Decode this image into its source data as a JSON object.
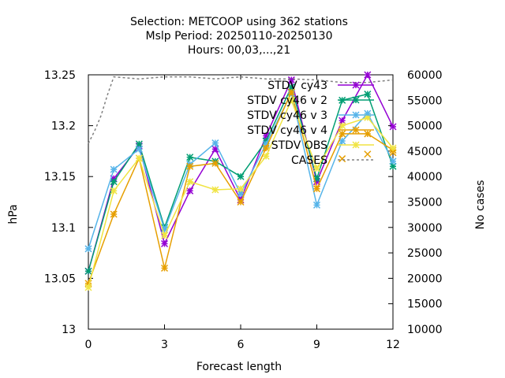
{
  "chart_data": {
    "type": "line",
    "title_lines": [
      "Selection: METCOOP using   362 stations",
      "Mslp   Period: 20250110-20250130",
      "Hours:  00,03,...,21"
    ],
    "xlabel": "Forecast length",
    "ylabel": "hPa",
    "y2label": "No cases",
    "xlim": [
      0,
      12
    ],
    "xticks": [
      0,
      3,
      6,
      9,
      12
    ],
    "ylim": [
      13,
      13.25
    ],
    "yticks": [
      13,
      13.05,
      13.1,
      13.15,
      13.2,
      13.25
    ],
    "ytick_labels": [
      "13",
      "13.05",
      "13.1",
      "13.15",
      "13.2",
      "13.25"
    ],
    "y2lim": [
      10000,
      60000
    ],
    "y2ticks": [
      10000,
      15000,
      20000,
      25000,
      30000,
      35000,
      40000,
      45000,
      50000,
      55000,
      60000
    ],
    "legend_position": "top-right",
    "grid": false,
    "x": [
      0,
      1,
      2,
      3,
      4,
      5,
      6,
      7,
      8,
      9,
      10,
      11,
      12
    ],
    "series": [
      {
        "name": "STDV cy43",
        "color": "#9400d3",
        "marker": "star",
        "axis": "y",
        "values": [
          13.057,
          13.148,
          13.18,
          13.084,
          13.136,
          13.177,
          13.127,
          13.19,
          13.245,
          13.145,
          13.205,
          13.25,
          13.199
        ]
      },
      {
        "name": "STDV cy46 v 2",
        "color": "#009e73",
        "marker": "star",
        "axis": "y",
        "values": [
          13.057,
          13.145,
          13.182,
          13.1,
          13.169,
          13.165,
          13.15,
          13.185,
          13.238,
          13.148,
          13.225,
          13.231,
          13.16
        ]
      },
      {
        "name": "STDV cy46 v 3",
        "color": "#56b4e9",
        "marker": "star",
        "axis": "y",
        "values": [
          13.079,
          13.157,
          13.177,
          13.098,
          13.162,
          13.183,
          13.133,
          13.182,
          13.232,
          13.122,
          13.185,
          13.212,
          13.165
        ]
      },
      {
        "name": "STDV cy46 v 4",
        "color": "#e69f00",
        "marker": "star",
        "axis": "y",
        "values": [
          13.045,
          13.113,
          13.168,
          13.06,
          13.16,
          13.163,
          13.125,
          13.178,
          13.233,
          13.138,
          13.192,
          13.192,
          13.176
        ]
      },
      {
        "name": "STDV OBS",
        "color": "#f0e442",
        "marker": "star",
        "axis": "y",
        "values": [
          13.041,
          13.136,
          13.168,
          13.092,
          13.145,
          13.137,
          13.138,
          13.17,
          13.225,
          13.158,
          13.2,
          13.208,
          13.178
        ]
      },
      {
        "name": "CASES",
        "color": "#808080",
        "dashed": true,
        "axis": "y2",
        "x": [
          0,
          0.25,
          0.5,
          0.75,
          1,
          2,
          3,
          4,
          5,
          6,
          7,
          8,
          9,
          10,
          11,
          12
        ],
        "values": [
          46500,
          49000,
          52000,
          56000,
          59600,
          59200,
          59600,
          59600,
          59200,
          59600,
          59200,
          59200,
          59000,
          58500,
          58500,
          59000
        ]
      },
      {
        "name": "CASES markers",
        "color": "#e69f00",
        "marker": "cross",
        "axis": "y2",
        "legend": false,
        "x": [
          10,
          11,
          12
        ],
        "values": [
          43500,
          44400,
          44700
        ]
      }
    ]
  }
}
